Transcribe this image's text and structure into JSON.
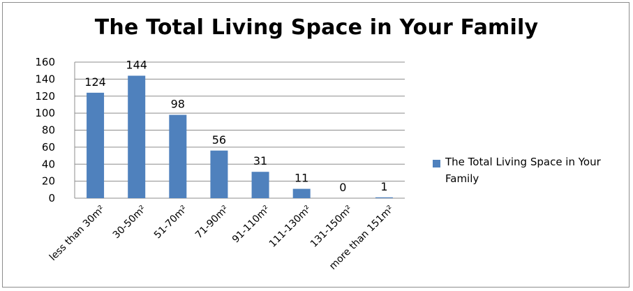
{
  "chart_data": {
    "type": "bar",
    "title": "The Total Living Space in Your Family",
    "xlabel": "",
    "ylabel": "",
    "categories": [
      "less than 30m²",
      "30-50m²",
      "51-70m²",
      "71-90m²",
      "91-110m²",
      "111-130m²",
      "131-150m²",
      "more than 151m²"
    ],
    "series": [
      {
        "name": "The Total Living Space in Your Family",
        "values": [
          124,
          144,
          98,
          56,
          31,
          11,
          0,
          1
        ],
        "color": "#4f81bd"
      }
    ],
    "ylim": [
      0,
      160
    ],
    "yticks": [
      0,
      20,
      40,
      60,
      80,
      100,
      120,
      140,
      160
    ],
    "grid": true,
    "legend_position": "right"
  }
}
